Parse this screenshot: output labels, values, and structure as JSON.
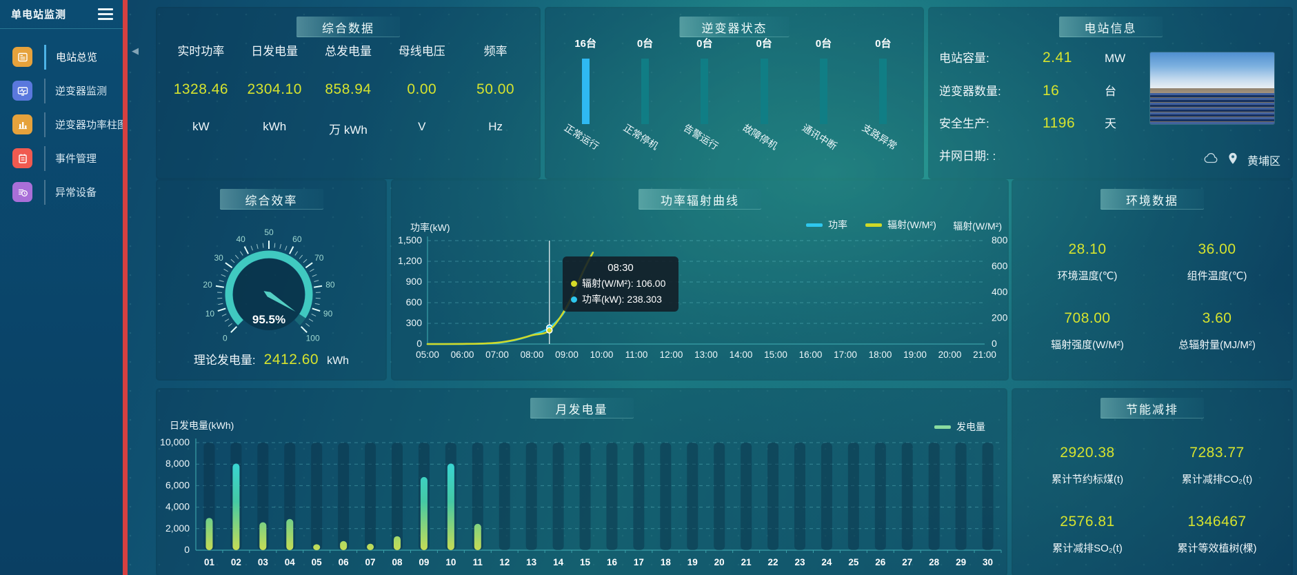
{
  "app": {
    "title": "单电站监测",
    "location": "黄埔区"
  },
  "sidebar": {
    "items": [
      {
        "label": "电站总览",
        "active": true,
        "icon": "document-icon",
        "color": "#e6a23c"
      },
      {
        "label": "逆变器监测",
        "active": false,
        "icon": "monitor-icon",
        "color": "#5a78dd"
      },
      {
        "label": "逆变器功率柱图",
        "active": false,
        "icon": "bar-chart-icon",
        "color": "#e6a23c"
      },
      {
        "label": "事件管理",
        "active": false,
        "icon": "notebook-icon",
        "color": "#f05a50"
      },
      {
        "label": "异常设备",
        "active": false,
        "icon": "device-alert-icon",
        "color": "#a96fd8"
      }
    ]
  },
  "panels": {
    "summary": {
      "title": "综合数据",
      "metrics": [
        {
          "label": "实时功率",
          "value": "1328.46",
          "unit": "kW"
        },
        {
          "label": "日发电量",
          "value": "2304.10",
          "unit": "kWh"
        },
        {
          "label": "总发电量",
          "value": "858.94",
          "unit": "万 kWh"
        },
        {
          "label": "母线电压",
          "value": "0.00",
          "unit": "V"
        },
        {
          "label": "频率",
          "value": "50.00",
          "unit": "Hz"
        }
      ]
    },
    "inverter_status": {
      "title": "逆变器状态"
    },
    "station_info": {
      "title": "电站信息",
      "rows": [
        {
          "label": "电站容量:",
          "value": "2.41",
          "unit": "MW"
        },
        {
          "label": "逆变器数量:",
          "value": "16",
          "unit": "台"
        },
        {
          "label": "安全生产:",
          "value": "1196",
          "unit": "天"
        },
        {
          "label": "并网日期: :",
          "value": "",
          "unit": ""
        }
      ]
    },
    "efficiency": {
      "title": "综合效率",
      "theory_label": "理论发电量:",
      "theory_value": "2412.60",
      "theory_unit": "kWh"
    },
    "power_curve": {
      "title": "功率辐射曲线"
    },
    "environment": {
      "title": "环境数据",
      "metrics": [
        {
          "value": "28.10",
          "label": "环境温度(℃)"
        },
        {
          "value": "36.00",
          "label": "组件温度(℃)"
        },
        {
          "value": "708.00",
          "label": "辐射强度(W/M²)"
        },
        {
          "value": "3.60",
          "label": "总辐射量(MJ/M²)"
        }
      ]
    },
    "monthly": {
      "title": "月发电量"
    },
    "saving": {
      "title": "节能减排",
      "metrics": [
        {
          "value": "2920.38",
          "label": "累计节约标煤(t)"
        },
        {
          "value": "7283.77",
          "label": "累计减排CO₂(t)"
        },
        {
          "value": "2576.81",
          "label": "累计减排SO₂(t)"
        },
        {
          "value": "1346467",
          "label": "累计等效植树(棵)"
        }
      ]
    }
  },
  "chart_data": [
    {
      "id": "power_radiation_curve",
      "type": "line",
      "title": "功率辐射曲线",
      "x": [
        "05:00",
        "05:30",
        "06:00",
        "06:30",
        "07:00",
        "07:30",
        "08:00",
        "08:30",
        "09:00",
        "09:30",
        "09:45"
      ],
      "x_ticks": [
        "05:00",
        "06:00",
        "07:00",
        "08:00",
        "09:00",
        "10:00",
        "11:00",
        "12:00",
        "13:00",
        "14:00",
        "15:00",
        "16:00",
        "17:00",
        "18:00",
        "19:00",
        "20:00",
        "21:00"
      ],
      "series": [
        {
          "name": "功率",
          "color": "#2ec7ee",
          "axis": "left",
          "values": [
            0,
            0,
            1,
            4,
            15,
            55,
            130,
            238.303,
            520,
            1080,
            1328.46
          ]
        },
        {
          "name": "辐射(W/M²)",
          "color": "#cfd928",
          "axis": "right",
          "values": [
            0,
            0,
            1,
            3,
            10,
            32,
            68,
            106,
            290,
            580,
            708
          ]
        }
      ],
      "ylabel_left": "功率(kW)",
      "ylabel_right": "辐射(W/M²)",
      "ylim_left": [
        0,
        1500
      ],
      "yticks_left": [
        0,
        300,
        600,
        900,
        1200,
        1500
      ],
      "ylim_right": [
        0,
        800
      ],
      "yticks_right": [
        0,
        200,
        400,
        600,
        800
      ],
      "grid": "dashed-horizontal",
      "legend_position": "top-right",
      "tooltip": {
        "time": "08:30",
        "entries": [
          {
            "label": "辐射(W/M²)",
            "value": "106.00",
            "color": "#d7dc28"
          },
          {
            "label": "功率(kW)",
            "value": "238.303",
            "color": "#2ec7ee"
          }
        ]
      }
    },
    {
      "id": "monthly_generation",
      "type": "bar",
      "title": "月发电量",
      "categories": [
        "01",
        "02",
        "03",
        "04",
        "05",
        "06",
        "07",
        "08",
        "09",
        "10",
        "11",
        "12",
        "13",
        "14",
        "15",
        "16",
        "17",
        "18",
        "19",
        "20",
        "21",
        "22",
        "23",
        "24",
        "25",
        "26",
        "27",
        "28",
        "29",
        "30"
      ],
      "values": [
        3000,
        8050,
        2600,
        2900,
        550,
        850,
        600,
        1300,
        6800,
        8050,
        2450,
        0,
        0,
        0,
        0,
        0,
        0,
        0,
        0,
        0,
        0,
        0,
        0,
        0,
        0,
        0,
        0,
        0,
        0,
        0
      ],
      "ylabel": "日发电量(kWh)",
      "ylim": [
        0,
        10000
      ],
      "yticks": [
        0,
        2000,
        4000,
        6000,
        8000,
        10000
      ],
      "legend": [
        "发电量"
      ],
      "legend_color": "#8adba0",
      "bar_gradient": [
        "#33dbeb",
        "#45c9a4",
        "#c6dc55"
      ]
    },
    {
      "id": "efficiency_gauge",
      "type": "gauge",
      "title": "综合效率",
      "value": 95.5,
      "display": "95.5%",
      "min": 0,
      "max": 100,
      "ticks": [
        0,
        10,
        20,
        30,
        40,
        50,
        60,
        70,
        80,
        90,
        100
      ],
      "color": "#40c9c0"
    },
    {
      "id": "inverter_status_bars",
      "type": "bar",
      "title": "逆变器状态",
      "categories": [
        "正常运行",
        "正常停机",
        "告警运行",
        "故障停机",
        "通讯中断",
        "支路异常"
      ],
      "values": [
        16,
        0,
        0,
        0,
        0,
        0
      ],
      "unit": "台",
      "active_color": "#2fb9f2",
      "idle_color": "#107e86"
    }
  ]
}
